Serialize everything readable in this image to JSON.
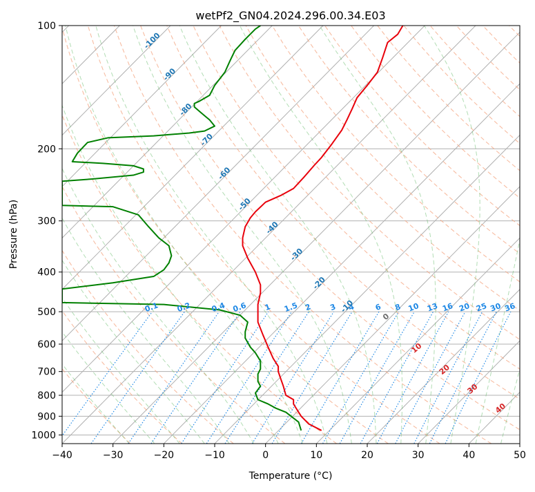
{
  "chart_data": {
    "type": "line",
    "title": "wetPf2_GN04.2024.296.00.34.E03",
    "xlabel": "Temperature (°C)",
    "ylabel": "Pressure (hPa)",
    "xlim": [
      -40,
      50
    ],
    "ylim": [
      1050,
      100
    ],
    "y_scale": "log",
    "grid": true,
    "x_ticks": [
      -40,
      -30,
      -20,
      -10,
      0,
      10,
      20,
      30,
      40,
      50
    ],
    "y_ticks": [
      100,
      200,
      300,
      400,
      500,
      600,
      700,
      800,
      900,
      1000
    ],
    "colors": {
      "temperature": "#e8000b",
      "dewpoint": "#008000",
      "isotherm_labels": "#1f77b4",
      "mixing_ratio": "#1e88e5",
      "dry_adiabat": "#f4a582",
      "moist_adiabat": "#66bb6a",
      "moist_adiabat_labels": "#d62728"
    },
    "series": [
      {
        "role": "temperature",
        "points": [
          [
            11,
            975
          ],
          [
            8.5,
            940
          ],
          [
            7,
            900
          ],
          [
            6,
            860
          ],
          [
            5.5,
            840
          ],
          [
            5.5,
            820
          ],
          [
            4,
            800
          ],
          [
            3.5,
            760
          ],
          [
            3,
            730
          ],
          [
            2.5,
            700
          ],
          [
            2.5,
            680
          ],
          [
            1.5,
            650
          ],
          [
            0.5,
            610
          ],
          [
            -0.5,
            570
          ],
          [
            -1.5,
            530
          ],
          [
            -1.5,
            500
          ],
          [
            -1.5,
            480
          ],
          [
            -1,
            450
          ],
          [
            -1,
            430
          ],
          [
            -2,
            400
          ],
          [
            -3.5,
            370
          ],
          [
            -4.5,
            345
          ],
          [
            -4.5,
            330
          ],
          [
            -4,
            310
          ],
          [
            -3,
            295
          ],
          [
            -2,
            285
          ],
          [
            0,
            270
          ],
          [
            3,
            260
          ],
          [
            5.5,
            250
          ],
          [
            7.5,
            235
          ],
          [
            9.5,
            220
          ],
          [
            11,
            210
          ],
          [
            13,
            195
          ],
          [
            15,
            180
          ],
          [
            16,
            170
          ],
          [
            17,
            160
          ],
          [
            18,
            150
          ],
          [
            20,
            140
          ],
          [
            22,
            130
          ],
          [
            23,
            120
          ],
          [
            24,
            110
          ],
          [
            26,
            105
          ],
          [
            27,
            100
          ]
        ],
        "values": []
      },
      {
        "role": "dewpoint",
        "points": [
          [
            7,
            975
          ],
          [
            6.5,
            930
          ],
          [
            4,
            880
          ],
          [
            2,
            860
          ],
          [
            0.5,
            840
          ],
          [
            -1.5,
            820
          ],
          [
            -2,
            790
          ],
          [
            -1,
            760
          ],
          [
            -1.5,
            740
          ],
          [
            -1.5,
            710
          ],
          [
            -1,
            690
          ],
          [
            -1,
            660
          ],
          [
            -2,
            630
          ],
          [
            -3,
            610
          ],
          [
            -4,
            580
          ],
          [
            -4,
            560
          ],
          [
            -3.5,
            530
          ],
          [
            -5,
            510
          ],
          [
            -9,
            495
          ],
          [
            -20,
            480
          ],
          [
            -40,
            475
          ],
          [
            -40,
            440
          ],
          [
            -30,
            425
          ],
          [
            -22,
            410
          ],
          [
            -20,
            395
          ],
          [
            -19,
            380
          ],
          [
            -18.5,
            365
          ],
          [
            -19,
            345
          ],
          [
            -21,
            330
          ],
          [
            -23,
            310
          ],
          [
            -25,
            290
          ],
          [
            -30,
            277
          ],
          [
            -40,
            275
          ],
          [
            -40,
            240
          ],
          [
            -34,
            237
          ],
          [
            -26,
            232
          ],
          [
            -24,
            228
          ],
          [
            -24,
            224
          ],
          [
            -26,
            220
          ],
          [
            -32,
            217
          ],
          [
            -38,
            215
          ],
          [
            -37,
            205
          ],
          [
            -35,
            193
          ],
          [
            -31,
            188
          ],
          [
            -22,
            186
          ],
          [
            -15,
            183
          ],
          [
            -12,
            181
          ],
          [
            -10,
            176
          ],
          [
            -11,
            170
          ],
          [
            -12,
            166
          ],
          [
            -13,
            162
          ],
          [
            -14,
            158
          ],
          [
            -14,
            155
          ],
          [
            -13,
            153
          ],
          [
            -11,
            148
          ],
          [
            -10,
            140
          ],
          [
            -8,
            130
          ],
          [
            -7,
            122
          ],
          [
            -6,
            115
          ],
          [
            -4,
            108
          ],
          [
            -2,
            102
          ],
          [
            -1,
            100
          ]
        ],
        "values": []
      }
    ],
    "isotherm_labels": [
      -100,
      -90,
      -80,
      -70,
      -60,
      -50,
      -40,
      -30,
      -20,
      -10
    ],
    "mixing_ratio_labels": [
      "0.1",
      "0.2",
      "0.4",
      "0.6",
      "1",
      "1.5",
      "2",
      "3",
      "4",
      "6",
      "8",
      "10",
      "13",
      "16",
      "20",
      "25",
      "30",
      "36"
    ],
    "moist_adiabat_labels": [
      "0",
      "10",
      "20",
      "30",
      "40"
    ]
  }
}
